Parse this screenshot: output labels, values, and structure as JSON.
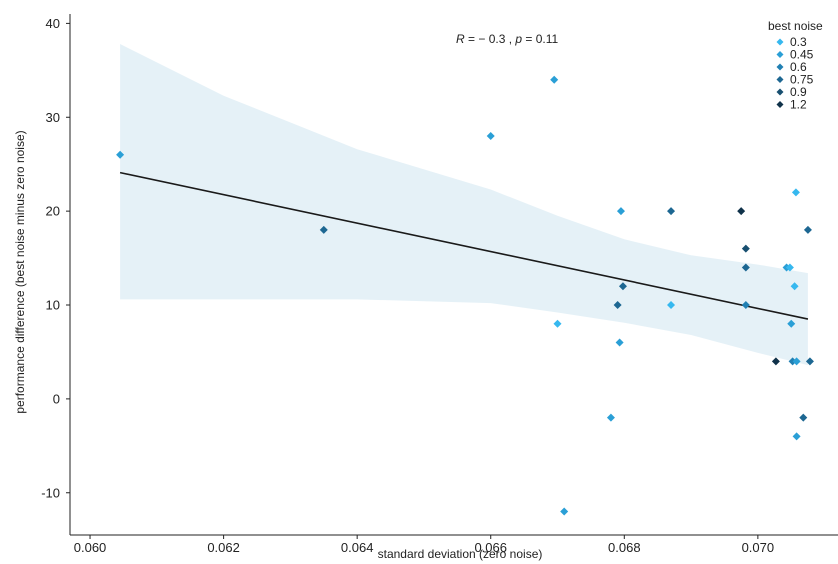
{
  "chart_data": {
    "type": "scatter",
    "xlabel": "standard deviation (zero noise)",
    "ylabel": "performance difference (best noise minus zero noise)",
    "xlim": [
      0.0597,
      0.0712
    ],
    "ylim": [
      -14.5,
      41
    ],
    "x_ticks": [
      "0.060",
      "0.062",
      "0.064",
      "0.066",
      "0.068",
      "0.070"
    ],
    "x_tick_values": [
      0.06,
      0.062,
      0.064,
      0.066,
      0.068,
      0.07
    ],
    "y_ticks": [
      "-10",
      "0",
      "10",
      "20",
      "30",
      "40"
    ],
    "y_tick_values": [
      -10,
      0,
      10,
      20,
      30,
      40
    ],
    "grid": false,
    "legend_position": "top-right",
    "annotation": {
      "r_symbol": "R",
      "r_value": " = − 0.3 , ",
      "p_symbol": "p",
      "p_value": " = 0.11"
    },
    "regression": {
      "x": [
        0.06045,
        0.07075
      ],
      "y": [
        24.1,
        8.5
      ],
      "ci_upper": [
        [
          0.06045,
          37.8
        ],
        [
          0.062,
          32.3
        ],
        [
          0.064,
          26.6
        ],
        [
          0.066,
          22.3
        ],
        [
          0.067,
          19.5
        ],
        [
          0.068,
          17.0
        ],
        [
          0.069,
          15.3
        ],
        [
          0.07,
          14.3
        ],
        [
          0.07075,
          13.4
        ]
      ],
      "ci_lower": [
        [
          0.06045,
          10.6
        ],
        [
          0.062,
          10.6
        ],
        [
          0.064,
          10.6
        ],
        [
          0.066,
          10.2
        ],
        [
          0.067,
          9.2
        ],
        [
          0.068,
          8.1
        ],
        [
          0.069,
          6.8
        ],
        [
          0.07,
          4.9
        ],
        [
          0.07075,
          3.6
        ]
      ],
      "line_color": "#1a1a1a",
      "band_color": "#d4e8f2"
    },
    "legend": {
      "title": "best noise",
      "entries": [
        {
          "label": "0.3",
          "color": "#36b8ef"
        },
        {
          "label": "0.45",
          "color": "#2a9fd6"
        },
        {
          "label": "0.6",
          "color": "#2180b3"
        },
        {
          "label": "0.75",
          "color": "#1d6792"
        },
        {
          "label": "0.9",
          "color": "#184f70"
        },
        {
          "label": "1.2",
          "color": "#10324a"
        }
      ]
    },
    "points": [
      {
        "x": 0.06045,
        "y": 26,
        "noise": "0.45"
      },
      {
        "x": 0.0635,
        "y": 18,
        "noise": "0.75"
      },
      {
        "x": 0.066,
        "y": 28,
        "noise": "0.45"
      },
      {
        "x": 0.06695,
        "y": 34,
        "noise": "0.45"
      },
      {
        "x": 0.067,
        "y": 8,
        "noise": "0.3"
      },
      {
        "x": 0.0671,
        "y": -12,
        "noise": "0.45"
      },
      {
        "x": 0.0678,
        "y": -2,
        "noise": "0.45"
      },
      {
        "x": 0.0679,
        "y": 10,
        "noise": "0.75"
      },
      {
        "x": 0.06793,
        "y": 6,
        "noise": "0.45"
      },
      {
        "x": 0.06795,
        "y": 20,
        "noise": "0.45"
      },
      {
        "x": 0.06798,
        "y": 12,
        "noise": "0.75"
      },
      {
        "x": 0.0687,
        "y": 20,
        "noise": "0.75"
      },
      {
        "x": 0.0687,
        "y": 10,
        "noise": "0.3"
      },
      {
        "x": 0.06975,
        "y": 20,
        "noise": "1.2"
      },
      {
        "x": 0.06982,
        "y": 16,
        "noise": "0.9"
      },
      {
        "x": 0.06982,
        "y": 14,
        "noise": "0.75"
      },
      {
        "x": 0.06982,
        "y": 10,
        "noise": "0.6"
      },
      {
        "x": 0.07027,
        "y": 4,
        "noise": "1.2"
      },
      {
        "x": 0.07043,
        "y": 14,
        "noise": "0.45"
      },
      {
        "x": 0.07048,
        "y": 14,
        "noise": "0.3"
      },
      {
        "x": 0.0705,
        "y": 8,
        "noise": "0.45"
      },
      {
        "x": 0.07052,
        "y": 4,
        "noise": "0.6"
      },
      {
        "x": 0.07055,
        "y": 12,
        "noise": "0.3"
      },
      {
        "x": 0.07057,
        "y": 22,
        "noise": "0.3"
      },
      {
        "x": 0.07058,
        "y": 4,
        "noise": "0.45"
      },
      {
        "x": 0.07058,
        "y": -4,
        "noise": "0.45"
      },
      {
        "x": 0.07068,
        "y": -2,
        "noise": "0.75"
      },
      {
        "x": 0.07075,
        "y": 18,
        "noise": "0.75"
      },
      {
        "x": 0.07078,
        "y": 4,
        "noise": "0.75"
      }
    ]
  }
}
